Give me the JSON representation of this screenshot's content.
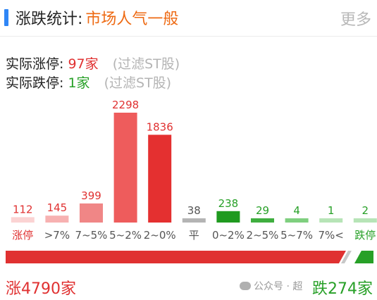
{
  "header": {
    "title": "涨跌统计:",
    "subtitle": "市场人气一般",
    "more": "更多"
  },
  "stats": {
    "up_label": "实际涨停:",
    "up_value": "97家",
    "up_note": "(过滤ST股)",
    "down_label": "实际跌停:",
    "down_value": "1家",
    "down_note": "(过滤ST股)"
  },
  "colors": {
    "accent": "#2f86f6",
    "up": "#e03131",
    "down": "#27a027",
    "flat": "#b4b4b4",
    "sentiment": "#ee6a13"
  },
  "chart_data": {
    "type": "bar",
    "categories": [
      "涨停",
      ">7%",
      "7~5%",
      "5~2%",
      "2~0%",
      "平",
      "0~2%",
      "2~5%",
      "5~7%",
      "7%<",
      "跌停"
    ],
    "values": [
      112,
      145,
      399,
      2298,
      1836,
      38,
      238,
      29,
      4,
      1,
      2
    ],
    "value_labels": [
      "112",
      "145",
      "399",
      "2298",
      "1836",
      "38",
      "238",
      "29",
      "4",
      "1",
      "2"
    ],
    "bar_colors": [
      "#fbd3d3",
      "#f7b1b1",
      "#f08686",
      "#ee5c5c",
      "#e43030",
      "#b4b4b4",
      "#1f9a1f",
      "#3fae3f",
      "#7fcf7f",
      "#b7e4b7",
      "#b7e4b7"
    ],
    "label_colors": [
      "#e03131",
      "#555555",
      "#555555",
      "#555555",
      "#555555",
      "#555555",
      "#555555",
      "#555555",
      "#555555",
      "#555555",
      "#27a027"
    ],
    "value_colors": [
      "#e03131",
      "#e03131",
      "#e03131",
      "#e03131",
      "#e03131",
      "#555555",
      "#27a027",
      "#27a027",
      "#27a027",
      "#27a027",
      "#27a027"
    ],
    "ylim": [
      0,
      2298
    ],
    "grid": false
  },
  "ratio": {
    "up_count": 4790,
    "down_count": 274
  },
  "footer": {
    "up_text": "涨4790家",
    "down_text": "跌274家",
    "watermark": "公众号 · 超"
  }
}
